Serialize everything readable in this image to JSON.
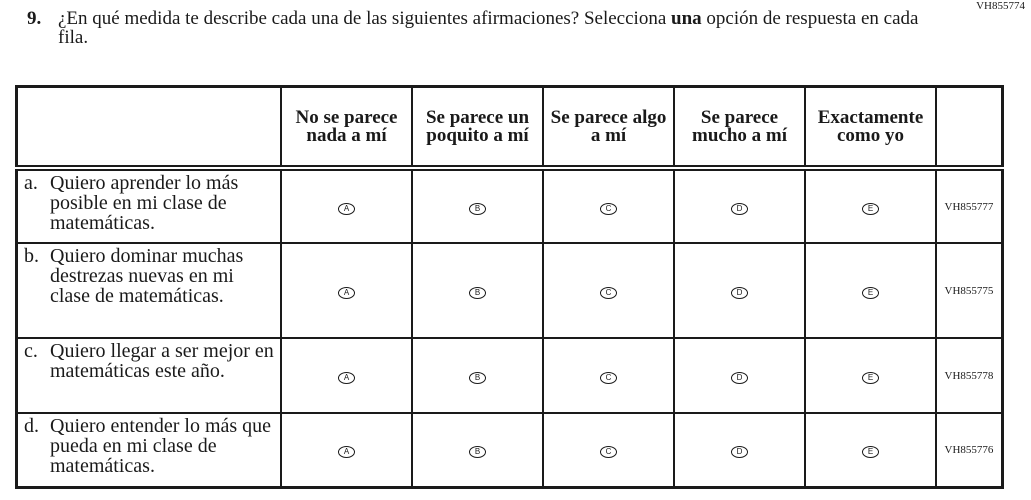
{
  "question_id": "VH855774",
  "question": {
    "number": "9.",
    "text_before_bold": "¿En qué medida te describe cada una de las siguientes afirmaciones? Selecciona ",
    "bold": "una",
    "text_after_bold": " opción de respuesta en cada fila."
  },
  "columns": [
    "No se parece nada a mí",
    "Se parece un poquito a mí",
    "Se parece algo a mí",
    "Se parece mucho a mí",
    "Exactamente como yo"
  ],
  "options": [
    "A",
    "B",
    "C",
    "D",
    "E"
  ],
  "rows": [
    {
      "letter": "a.",
      "text": "Quiero aprender lo más posible en mi clase de matemáticas.",
      "code": "VH855777"
    },
    {
      "letter": "b.",
      "text": "Quiero dominar muchas destrezas nuevas en mi clase de matemáticas.",
      "code": "VH855775"
    },
    {
      "letter": "c.",
      "text": "Quiero llegar a ser mejor en matemáticas este año.",
      "code": "VH855778"
    },
    {
      "letter": "d.",
      "text": "Quiero entender lo más que pueda en mi clase de matemáticas.",
      "code": "VH855776"
    }
  ]
}
